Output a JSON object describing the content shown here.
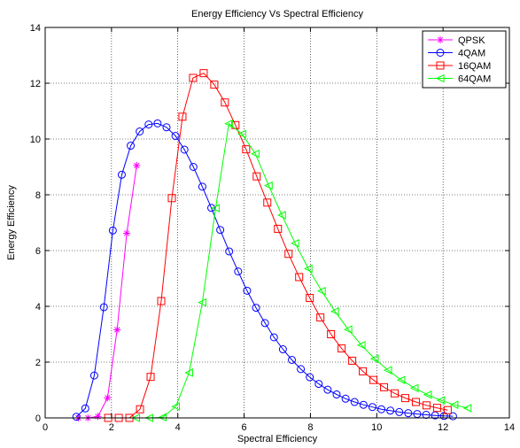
{
  "chart_data": {
    "type": "line",
    "title": "Energy Efficiency Vs Spectral Efficiency",
    "xlabel": "Spectral Efficiency",
    "ylabel": "Energy Efficiency",
    "xlim": [
      0,
      14
    ],
    "ylim": [
      0,
      14
    ],
    "xticks": [
      0,
      2,
      4,
      6,
      8,
      10,
      12,
      14
    ],
    "yticks": [
      0,
      2,
      4,
      6,
      8,
      10,
      12,
      14
    ],
    "grid": true,
    "legend_position": "top-right",
    "series": [
      {
        "name": "QPSK",
        "color": "#ff00ff",
        "marker": "star",
        "x": [
          1.0,
          1.29,
          1.59,
          1.88,
          2.17,
          2.46,
          2.76
        ],
        "y": [
          0.0,
          0.0,
          0.05,
          0.72,
          3.16,
          6.62,
          9.05
        ]
      },
      {
        "name": "4QAM",
        "color": "#0000ff",
        "marker": "circle",
        "x": [
          0.94,
          1.21,
          1.48,
          1.77,
          2.04,
          2.31,
          2.58,
          2.85,
          3.12,
          3.39,
          3.66,
          3.93,
          4.2,
          4.47,
          4.74,
          5.01,
          5.28,
          5.55,
          5.82,
          6.09,
          6.36,
          6.63,
          6.9,
          7.17,
          7.44,
          7.71,
          7.98,
          8.25,
          8.52,
          8.79,
          9.06,
          9.33,
          9.6,
          9.87,
          10.14,
          10.41,
          10.68,
          10.95,
          11.22,
          11.49,
          11.76,
          12.03,
          12.3
        ],
        "y": [
          0.04,
          0.34,
          1.52,
          3.97,
          6.72,
          8.72,
          9.76,
          10.27,
          10.52,
          10.56,
          10.42,
          10.11,
          9.62,
          9.0,
          8.29,
          7.53,
          6.74,
          5.97,
          5.25,
          4.56,
          3.95,
          3.4,
          2.89,
          2.46,
          2.08,
          1.75,
          1.46,
          1.22,
          1.01,
          0.84,
          0.69,
          0.57,
          0.47,
          0.39,
          0.31,
          0.26,
          0.21,
          0.17,
          0.14,
          0.11,
          0.09,
          0.07,
          0.06
        ]
      },
      {
        "name": "16QAM",
        "color": "#ff0000",
        "marker": "square",
        "x": [
          1.9,
          2.22,
          2.54,
          2.86,
          3.18,
          3.5,
          3.82,
          4.14,
          4.46,
          4.78,
          5.1,
          5.42,
          5.74,
          6.06,
          6.38,
          6.7,
          7.02,
          7.34,
          7.66,
          7.98,
          8.3,
          8.62,
          8.94,
          9.26,
          9.58,
          9.9,
          10.22,
          10.54,
          10.86,
          11.18,
          11.5,
          11.82,
          12.14
        ],
        "y": [
          0.0,
          0.0,
          0.0,
          0.31,
          1.47,
          4.19,
          7.88,
          10.8,
          12.19,
          12.36,
          11.95,
          11.31,
          10.5,
          9.63,
          8.66,
          7.72,
          6.78,
          5.88,
          5.05,
          4.3,
          3.6,
          3.0,
          2.49,
          2.05,
          1.67,
          1.36,
          1.1,
          0.88,
          0.71,
          0.57,
          0.45,
          0.36,
          0.28
        ]
      },
      {
        "name": "64QAM",
        "color": "#00ff00",
        "marker": "triangle-left",
        "x": [
          2.74,
          3.14,
          3.54,
          3.94,
          4.34,
          4.74,
          5.14,
          5.54,
          5.94,
          6.34,
          6.74,
          7.14,
          7.54,
          7.94,
          8.34,
          8.74,
          9.14,
          9.54,
          9.94,
          10.34,
          10.74,
          11.14,
          11.54,
          11.94,
          12.34,
          12.74
        ],
        "y": [
          0.0,
          0.0,
          0.02,
          0.41,
          1.62,
          4.14,
          7.52,
          10.55,
          10.18,
          9.47,
          8.33,
          7.27,
          6.26,
          5.35,
          4.55,
          3.82,
          3.17,
          2.61,
          2.12,
          1.71,
          1.36,
          1.07,
          0.83,
          0.63,
          0.47,
          0.35
        ]
      }
    ]
  }
}
